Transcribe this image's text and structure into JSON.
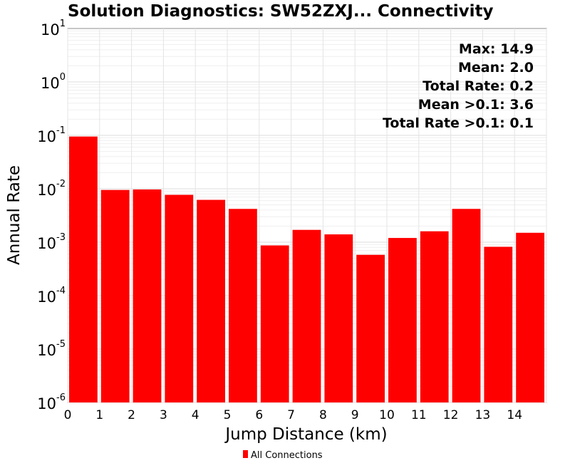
{
  "chart_data": {
    "type": "bar",
    "title": "Solution Diagnostics: SW52ZXJ... Connectivity",
    "xlabel": "Jump Distance (km)",
    "ylabel": "Annual Rate",
    "yscale": "log",
    "ylim": [
      1e-06,
      10
    ],
    "xlim": [
      0,
      15
    ],
    "x_ticks": [
      "0",
      "1",
      "2",
      "3",
      "4",
      "5",
      "6",
      "7",
      "8",
      "9",
      "10",
      "11",
      "12",
      "13",
      "14"
    ],
    "y_ticks": [
      {
        "base": "10",
        "exp": "1"
      },
      {
        "base": "10",
        "exp": "0"
      },
      {
        "base": "10",
        "exp": "-1"
      },
      {
        "base": "10",
        "exp": "-2"
      },
      {
        "base": "10",
        "exp": "-3"
      },
      {
        "base": "10",
        "exp": "-4"
      },
      {
        "base": "10",
        "exp": "-5"
      },
      {
        "base": "10",
        "exp": "-6"
      }
    ],
    "series": [
      {
        "name": "All Connections",
        "color": "#ff0000",
        "x": [
          0,
          1,
          2,
          3,
          4,
          5,
          6,
          7,
          8,
          9,
          10,
          11,
          12,
          13,
          14
        ],
        "values": [
          0.095,
          0.0095,
          0.0097,
          0.0077,
          0.0062,
          0.0042,
          0.00087,
          0.0017,
          0.0014,
          0.00058,
          0.0012,
          0.0016,
          0.0042,
          0.00082,
          0.0015
        ]
      }
    ],
    "annotations": [
      "Max: 14.9",
      "Mean: 2.0",
      "Total Rate: 0.2",
      "Mean >0.1: 3.6",
      "Total Rate >0.1: 0.1"
    ],
    "legend_position": "bottom-center",
    "grid": true
  }
}
